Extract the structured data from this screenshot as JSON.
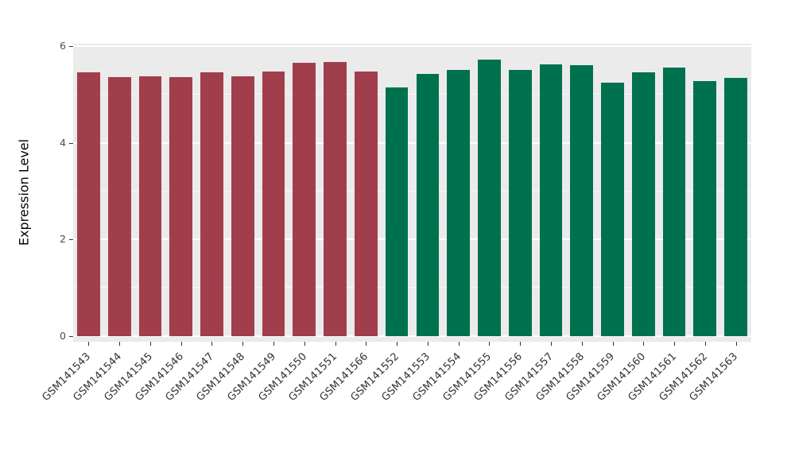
{
  "chart_data": {
    "type": "bar",
    "title": "",
    "xlabel": "",
    "ylabel": "Expression Level",
    "ylim": [
      0,
      6
    ],
    "yticks": [
      0,
      2,
      4,
      6
    ],
    "yticks_minor": [
      1,
      3,
      5
    ],
    "legend": "none",
    "panel_background": "#EBEBEB",
    "grid_color": "#FFFFFF",
    "categories": [
      "GSM141543",
      "GSM141544",
      "GSM141545",
      "GSM141546",
      "GSM141547",
      "GSM141548",
      "GSM141549",
      "GSM141550",
      "GSM141551",
      "GSM141566",
      "GSM141552",
      "GSM141553",
      "GSM141554",
      "GSM141555",
      "GSM141556",
      "GSM141557",
      "GSM141558",
      "GSM141559",
      "GSM141560",
      "GSM141561",
      "GSM141562",
      "GSM141563"
    ],
    "values": [
      5.45,
      5.36,
      5.38,
      5.36,
      5.45,
      5.37,
      5.48,
      5.65,
      5.67,
      5.48,
      5.15,
      5.42,
      5.5,
      5.72,
      5.5,
      5.62,
      5.6,
      5.25,
      5.45,
      5.55,
      5.28,
      5.35
    ],
    "groups": [
      "group1",
      "group1",
      "group1",
      "group1",
      "group1",
      "group1",
      "group1",
      "group1",
      "group1",
      "group1",
      "group2",
      "group2",
      "group2",
      "group2",
      "group2",
      "group2",
      "group2",
      "group2",
      "group2",
      "group2",
      "group2",
      "group2"
    ],
    "group_colors": {
      "group1": "#A13E4C",
      "group2": "#00714E"
    }
  }
}
